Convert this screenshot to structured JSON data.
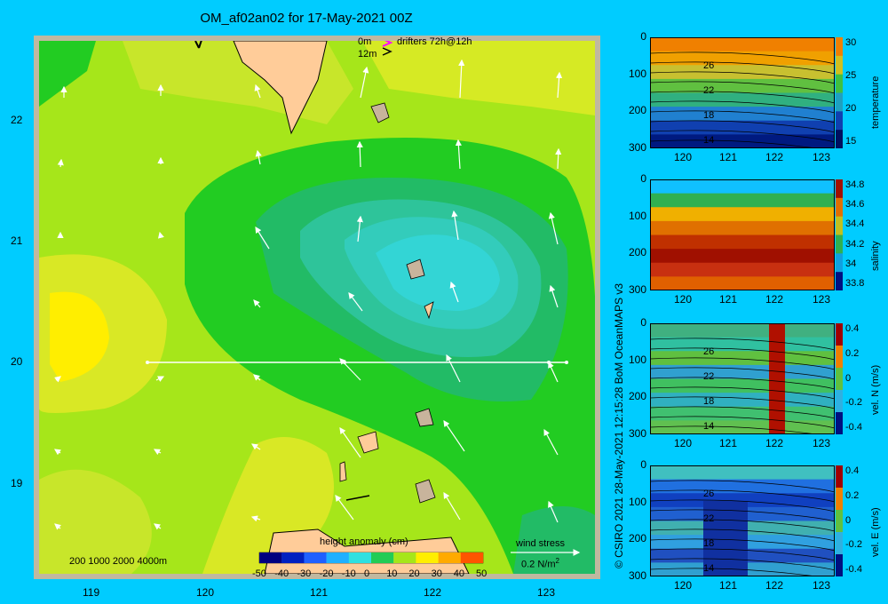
{
  "title": "OM_af02an02 for 17-May-2021 00Z",
  "credit": "© CSIRO 2021  28-May-2021 12:15:28 BoM OceanMAPS v3",
  "map": {
    "x_ticks": [
      "119",
      "120",
      "121",
      "122",
      "123"
    ],
    "y_ticks": [
      "22",
      "21",
      "20",
      "19"
    ],
    "bathy_legend": "200  1000  2000  4000m",
    "drifter_legend": {
      "line1": "0m",
      "line2": "12m",
      "label": "drifters 72h@12h"
    },
    "colorbar": {
      "label": "height anomaly (cm)",
      "ticks": [
        "-50",
        "-40",
        "-30",
        "-20",
        "-10",
        "0",
        "10",
        "20",
        "30",
        "40",
        "50"
      ]
    },
    "wind_legend": {
      "title": "wind stress",
      "value": "0.2 N/m",
      "sup": "2"
    },
    "colors": {
      "ocean_high": "#ffee00",
      "ocean_mid": "#a6e61a",
      "ocean_low": "#22cc22",
      "eddy": "#33ccaa",
      "eddy_core": "#33d5d5",
      "land": "#ffcc99",
      "shelf": "#c8b49c",
      "frame": "#c0b8a0"
    }
  },
  "chart_data": [
    {
      "type": "heatmap",
      "variable": "temperature",
      "ylabel": "temperature",
      "x_ticks": [
        "120",
        "121",
        "122",
        "123"
      ],
      "y_ticks": [
        "0",
        "100",
        "200",
        "300"
      ],
      "colorbar_ticks": [
        "30",
        "25",
        "20",
        "15"
      ],
      "contour_labels": [
        "26",
        "22",
        "18",
        "14"
      ],
      "ylim": [
        300,
        0
      ],
      "xlim": [
        119.5,
        123.2
      ]
    },
    {
      "type": "heatmap",
      "variable": "salinity",
      "ylabel": "salinity",
      "x_ticks": [
        "120",
        "121",
        "122",
        "123"
      ],
      "y_ticks": [
        "0",
        "100",
        "200",
        "300"
      ],
      "colorbar_ticks": [
        "34.8",
        "34.6",
        "34.4",
        "34.2",
        "34",
        "33.8"
      ],
      "ylim": [
        300,
        0
      ],
      "xlim": [
        119.5,
        123.2
      ]
    },
    {
      "type": "heatmap",
      "variable": "vel N",
      "ylabel": "vel. N (m/s)",
      "x_ticks": [
        "120",
        "121",
        "122",
        "123"
      ],
      "y_ticks": [
        "0",
        "100",
        "200",
        "300"
      ],
      "colorbar_ticks": [
        "0.4",
        "0.2",
        "0",
        "-0.2",
        "-0.4"
      ],
      "contour_labels": [
        "26",
        "22",
        "18",
        "14"
      ],
      "ylim": [
        300,
        0
      ],
      "xlim": [
        119.5,
        123.2
      ]
    },
    {
      "type": "heatmap",
      "variable": "vel E",
      "ylabel": "vel. E (m/s)",
      "x_ticks": [
        "120",
        "121",
        "122",
        "123"
      ],
      "y_ticks": [
        "0",
        "100",
        "200",
        "300"
      ],
      "colorbar_ticks": [
        "0.4",
        "0.2",
        "0",
        "-0.2",
        "-0.4"
      ],
      "contour_labels": [
        "26",
        "22",
        "18",
        "14"
      ],
      "ylim": [
        300,
        0
      ],
      "xlim": [
        119.5,
        123.2
      ]
    }
  ]
}
